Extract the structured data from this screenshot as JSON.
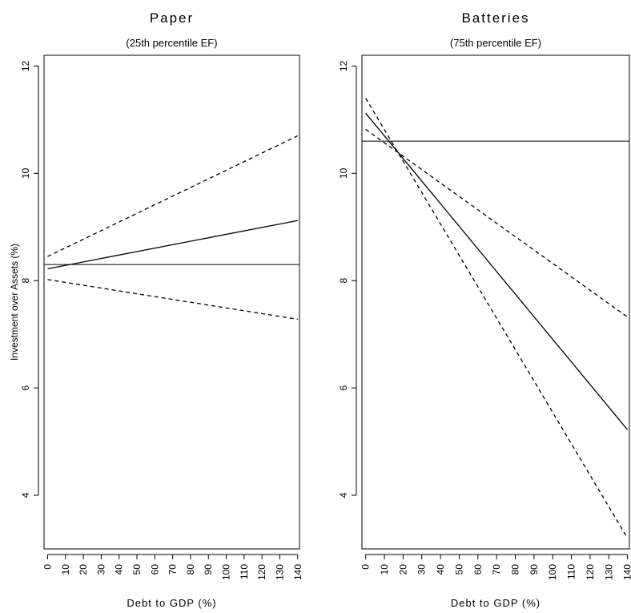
{
  "chart_data": [
    {
      "type": "line",
      "title": "Paper",
      "subtitle": "(25th percentile EF)",
      "xlabel": "Debt to GDP (%)",
      "ylabel": "Investment over Assets (%)",
      "xlim": [
        -2,
        141
      ],
      "ylim": [
        3,
        12.2
      ],
      "x_ticks": [
        0,
        10,
        20,
        30,
        40,
        50,
        60,
        70,
        80,
        90,
        100,
        110,
        120,
        130,
        140
      ],
      "x_tick_labels": [
        "0",
        "10",
        "20",
        "30",
        "40",
        "50",
        "60",
        "70",
        "80",
        "90",
        "100",
        "110",
        "120",
        "130",
        "140"
      ],
      "y_ticks": [
        4,
        6,
        8,
        10,
        12
      ],
      "y_tick_labels": [
        "4",
        "6",
        "8",
        "10",
        "12"
      ],
      "series": [
        {
          "style": "solid",
          "x": [
            0,
            140
          ],
          "y": [
            8.22,
            9.12
          ]
        },
        {
          "style": "dashed",
          "x": [
            0,
            140
          ],
          "y": [
            8.45,
            10.7
          ]
        },
        {
          "style": "dashed",
          "x": [
            0,
            140
          ],
          "y": [
            8.02,
            7.28
          ]
        }
      ],
      "hlines": [
        8.3
      ]
    },
    {
      "type": "line",
      "title": "Batteries",
      "subtitle": "(75th percentile EF)",
      "xlabel": "Debt to GDP (%)",
      "ylabel": "",
      "xlim": [
        -2,
        141
      ],
      "ylim": [
        3,
        12.2
      ],
      "x_ticks": [
        0,
        10,
        20,
        30,
        40,
        50,
        60,
        70,
        80,
        90,
        100,
        110,
        120,
        130,
        140
      ],
      "x_tick_labels": [
        "0",
        "10",
        "20",
        "30",
        "40",
        "50",
        "60",
        "70",
        "80",
        "90",
        "100",
        "110",
        "120",
        "130",
        "140"
      ],
      "y_ticks": [
        4,
        6,
        8,
        10,
        12
      ],
      "y_tick_labels": [
        "4",
        "6",
        "8",
        "10",
        "12"
      ],
      "series": [
        {
          "style": "solid",
          "x": [
            0,
            140
          ],
          "y": [
            11.12,
            5.22
          ]
        },
        {
          "style": "dashed",
          "x": [
            0,
            140
          ],
          "y": [
            11.4,
            3.2
          ]
        },
        {
          "style": "dashed",
          "x": [
            0,
            140
          ],
          "y": [
            10.82,
            7.32
          ]
        }
      ],
      "hlines": [
        10.6
      ]
    }
  ]
}
